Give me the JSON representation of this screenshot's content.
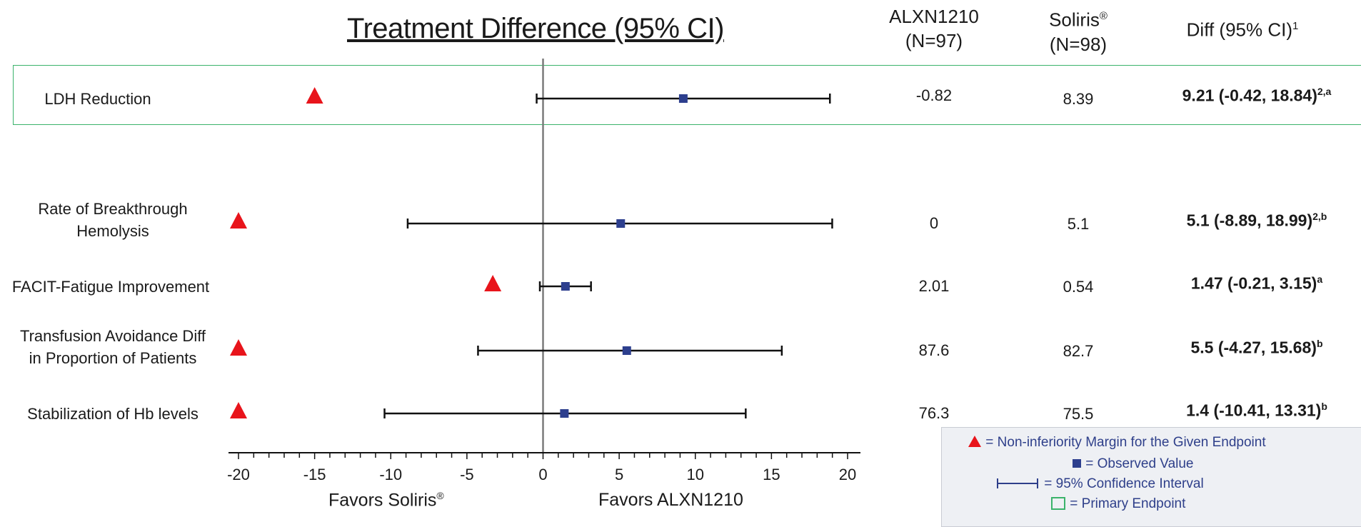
{
  "title": "Treatment Difference (95% CI)",
  "columns": {
    "alxn": {
      "line1": "ALXN1210",
      "line2": "(N=97)"
    },
    "soliris": {
      "line1": "Soliris",
      "line1_sup": "®",
      "line2": "(N=98)"
    },
    "diff": {
      "text": "Diff (95% CI)",
      "sup": "1"
    }
  },
  "axis": {
    "favors_left": "Favors Soliris",
    "favors_left_sup": "®",
    "favors_right": "Favors ALXN1210"
  },
  "legend": {
    "margin": "= Non-inferiority Margin for the Given Endpoint",
    "observed": "= Observed Value",
    "ci": "= 95% Confidence Interval",
    "primary": "= Primary Endpoint"
  },
  "colors": {
    "triangle": "#e8141b",
    "point": "#2d3f8e",
    "primary_box": "#3bb36b",
    "zero_line": "#7a7a7a"
  },
  "chart_data": {
    "type": "forest",
    "x": {
      "min": -20,
      "max": 20,
      "ticks": [
        -20,
        -15,
        -10,
        -5,
        0,
        5,
        10,
        15,
        20
      ]
    },
    "rows": [
      {
        "label": [
          "LDH Reduction"
        ],
        "alxn": "-0.82",
        "soliris": "8.39",
        "estimate": 9.21,
        "ci": [
          -0.42,
          18.84
        ],
        "margin": -15,
        "diff": "9.21 (-0.42, 18.84)",
        "diff_sup": "2,a",
        "primary": true
      },
      {
        "label": [
          "Rate of Breakthrough",
          "Hemolysis"
        ],
        "alxn": "0",
        "soliris": "5.1",
        "estimate": 5.1,
        "ci": [
          -8.89,
          18.99
        ],
        "margin": -20,
        "diff": "5.1 (-8.89, 18.99)",
        "diff_sup": "2,b",
        "primary": false
      },
      {
        "label": [
          "FACIT-Fatigue Improvement"
        ],
        "alxn": "2.01",
        "soliris": "0.54",
        "estimate": 1.47,
        "ci": [
          -0.21,
          3.15
        ],
        "margin": -3.3,
        "diff": "1.47 (-0.21, 3.15)",
        "diff_sup": "a",
        "primary": false
      },
      {
        "label": [
          "Transfusion Avoidance Diff",
          "in Proportion of Patients"
        ],
        "alxn": "87.6",
        "soliris": "82.7",
        "estimate": 5.5,
        "ci": [
          -4.27,
          15.68
        ],
        "margin": -20,
        "diff": "5.5 (-4.27, 15.68)",
        "diff_sup": "b",
        "primary": false
      },
      {
        "label": [
          "Stabilization of Hb levels"
        ],
        "alxn": "76.3",
        "soliris": "75.5",
        "estimate": 1.4,
        "ci": [
          -10.41,
          13.31
        ],
        "margin": -20,
        "diff": "1.4 (-10.41, 13.31)",
        "diff_sup": "b",
        "primary": false
      }
    ]
  }
}
